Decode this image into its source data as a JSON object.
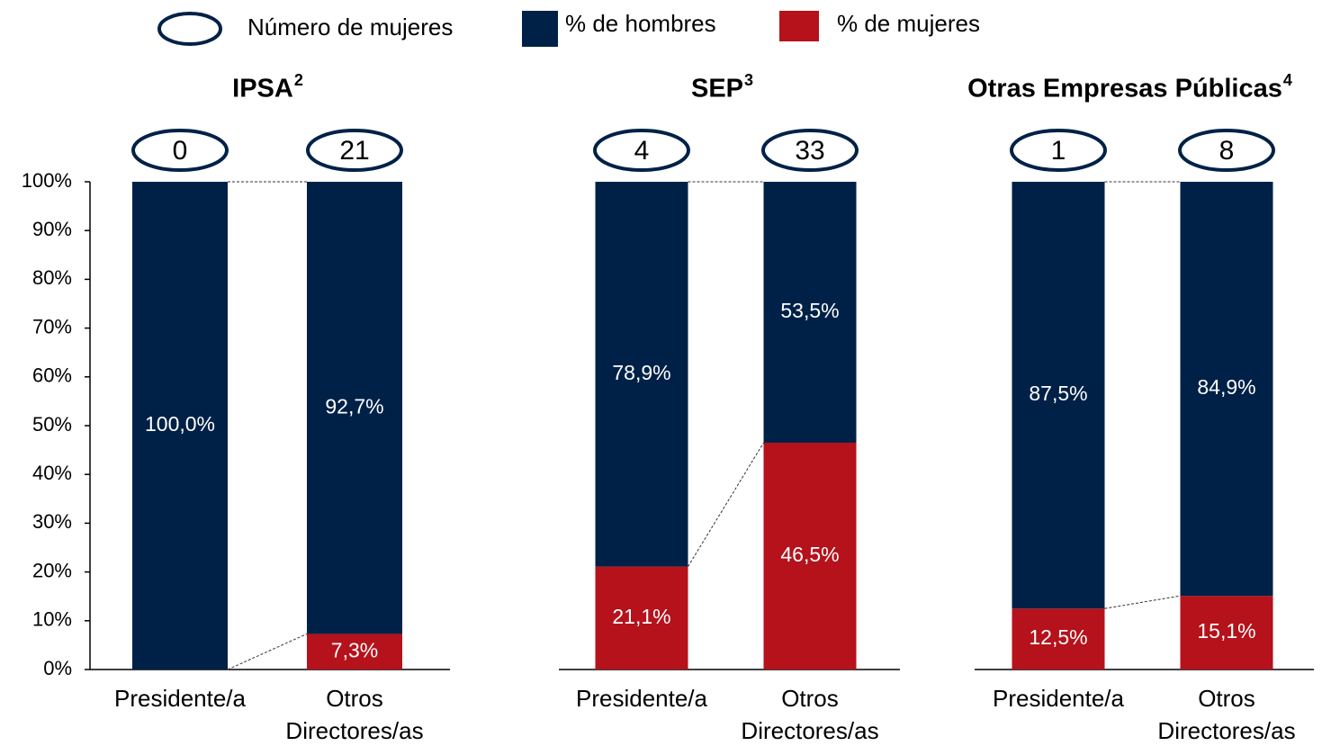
{
  "chart_data": [
    {
      "type": "bar",
      "stacked": true,
      "title": "IPSA",
      "title_note": "2",
      "categories": [
        "Presidente/a",
        "Otros\nDirectores/as"
      ],
      "counts": {
        "name": "Número de mujeres",
        "values": [
          0,
          21
        ]
      },
      "series": [
        {
          "name": "% de mujeres",
          "color": "#b5121b",
          "values": [
            0,
            7.3
          ],
          "value_labels": [
            null,
            "7,3%"
          ]
        },
        {
          "name": "% de hombres",
          "color": "#002147",
          "values": [
            100.0,
            92.7
          ],
          "value_labels": [
            "100,0%",
            "92,7%"
          ]
        }
      ],
      "ylim": [
        0,
        100
      ],
      "yticks": [
        {
          "value": 0,
          "label": "0%"
        },
        {
          "value": 10,
          "label": "10%"
        },
        {
          "value": 20,
          "label": "20%"
        },
        {
          "value": 30,
          "label": "30%"
        },
        {
          "value": 40,
          "label": "40%"
        },
        {
          "value": 50,
          "label": "50%"
        },
        {
          "value": 60,
          "label": "60%"
        },
        {
          "value": 70,
          "label": "70%"
        },
        {
          "value": 80,
          "label": "80%"
        },
        {
          "value": 90,
          "label": "90%"
        },
        {
          "value": 100,
          "label": "100%"
        }
      ]
    },
    {
      "type": "bar",
      "stacked": true,
      "title": "SEP",
      "title_note": "3",
      "categories": [
        "Presidente/a",
        "Otros\nDirectores/as"
      ],
      "counts": {
        "name": "Número de mujeres",
        "values": [
          4,
          33
        ]
      },
      "series": [
        {
          "name": "% de mujeres",
          "color": "#b5121b",
          "values": [
            21.1,
            46.5
          ],
          "value_labels": [
            "21,1%",
            "46,5%"
          ]
        },
        {
          "name": "% de hombres",
          "color": "#002147",
          "values": [
            78.9,
            53.5
          ],
          "value_labels": [
            "78,9%",
            "53,5%"
          ]
        }
      ],
      "ylim": [
        0,
        100
      ]
    },
    {
      "type": "bar",
      "stacked": true,
      "title": "Otras Empresas Públicas",
      "title_note": "4",
      "categories": [
        "Presidente/a",
        "Otros\nDirectores/as"
      ],
      "counts": {
        "name": "Número de mujeres",
        "values": [
          1,
          8
        ]
      },
      "series": [
        {
          "name": "% de mujeres",
          "color": "#b5121b",
          "values": [
            12.5,
            15.1
          ],
          "value_labels": [
            "12,5%",
            "15,1%"
          ]
        },
        {
          "name": "% de hombres",
          "color": "#002147",
          "values": [
            87.5,
            84.9
          ],
          "value_labels": [
            "87,5%",
            "84,9%"
          ]
        }
      ],
      "ylim": [
        0,
        100
      ]
    }
  ]
}
